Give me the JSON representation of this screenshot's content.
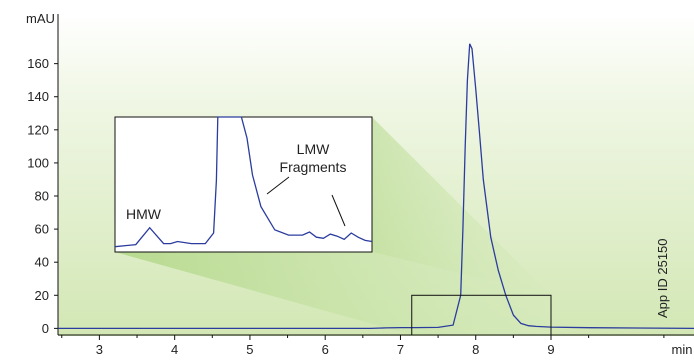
{
  "chart_data": {
    "type": "line",
    "title": "",
    "xlabel": "min",
    "ylabel": "mAU",
    "xlim": [
      2.45,
      10.9
    ],
    "ylim": [
      -4,
      190
    ],
    "x_ticks": [
      3,
      4,
      5,
      6,
      7,
      8,
      9
    ],
    "y_ticks": [
      0,
      20,
      40,
      60,
      80,
      100,
      120,
      140,
      160
    ],
    "grid": false,
    "series": [
      {
        "name": "",
        "color": "#2b3c9e",
        "x": [
          2.45,
          6.6,
          6.8,
          7.0,
          7.2,
          7.5,
          7.7,
          7.8,
          7.83,
          7.86,
          7.89,
          7.92,
          7.95,
          8.0,
          8.05,
          8.1,
          8.2,
          8.3,
          8.4,
          8.5,
          8.6,
          8.7,
          8.8,
          9.0,
          9.5,
          10.9
        ],
        "y": [
          0,
          0,
          0.3,
          0.5,
          0.5,
          0.6,
          2,
          20,
          60,
          110,
          150,
          172,
          169,
          145,
          118,
          90,
          55,
          35,
          20,
          8,
          3,
          1.6,
          1.2,
          0.8,
          0.4,
          0
        ]
      }
    ],
    "zoom_box": {
      "x": [
        7.15,
        9.0
      ],
      "y": [
        -4,
        20
      ]
    },
    "inset": {
      "annotations": [
        "HMW",
        "LMW",
        "Fragments"
      ],
      "x": [
        7.15,
        7.3,
        7.4,
        7.5,
        7.55,
        7.6,
        7.7,
        7.8,
        7.86,
        7.88,
        7.89,
        8.06,
        8.1,
        8.14,
        8.2,
        8.3,
        8.4,
        8.5,
        8.55,
        8.6,
        8.65,
        8.7,
        8.75,
        8.8,
        8.85,
        8.9,
        8.95,
        9.0
      ],
      "y": [
        1.7,
        1.9,
        3.5,
        2.0,
        2.0,
        2.2,
        2.0,
        2.0,
        3,
        8,
        20,
        20,
        12,
        8.5,
        5.5,
        3.3,
        2.8,
        2.8,
        3.1,
        2.6,
        2.5,
        2.9,
        2.7,
        2.4,
        3.0,
        2.6,
        2.3,
        2.2
      ],
      "ylim": [
        1.2,
        14
      ]
    },
    "annotation_vertical": "App ID 25150"
  }
}
